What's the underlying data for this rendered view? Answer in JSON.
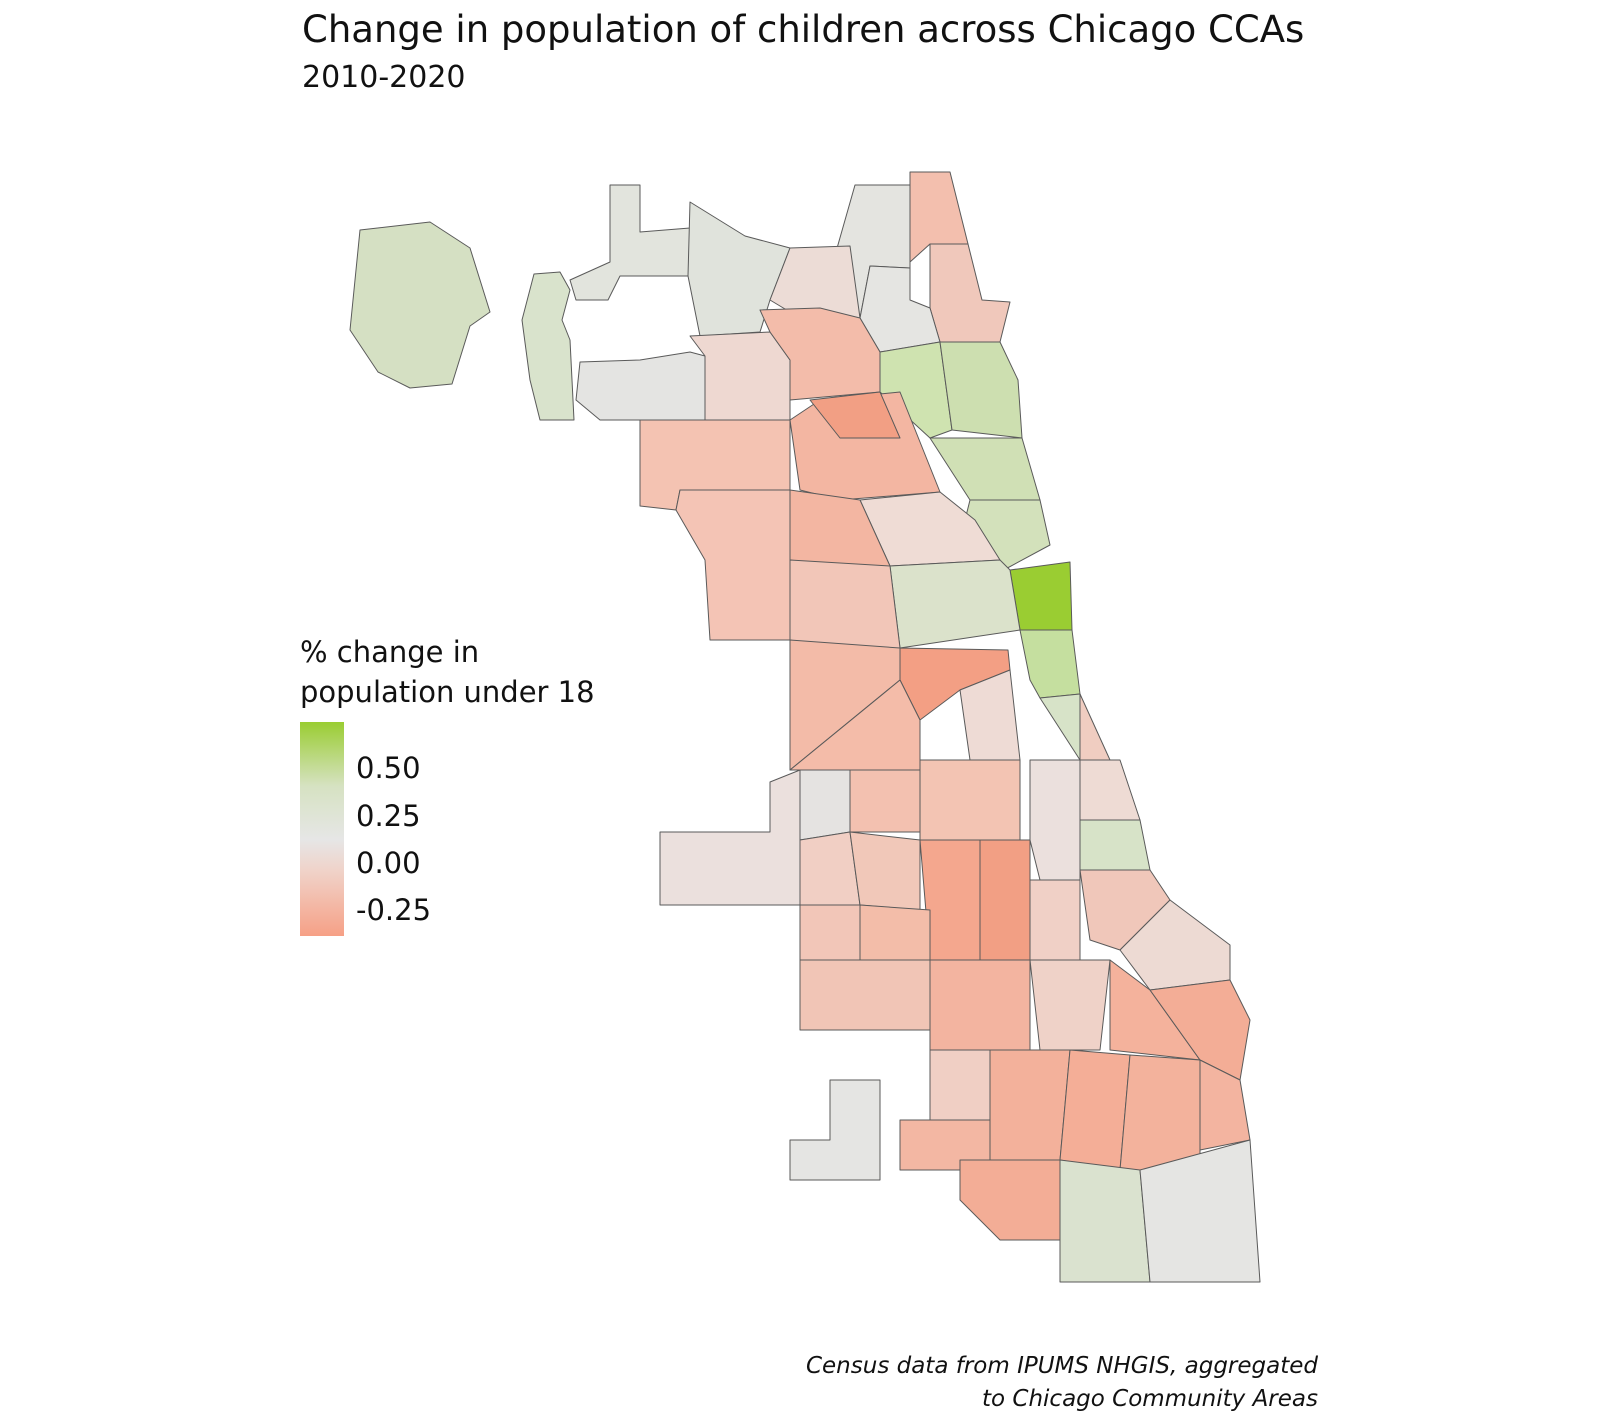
{
  "title": "Change in population of children across Chicago CCAs",
  "subtitle": "2010-2020",
  "legend": {
    "title_line1": "% change in",
    "title_line2": "population under 18",
    "ticks": [
      {
        "label": "0.50",
        "value": 0.5
      },
      {
        "label": "0.25",
        "value": 0.25
      },
      {
        "label": "0.00",
        "value": 0.0
      },
      {
        "label": "-0.25",
        "value": -0.25
      }
    ],
    "colors": {
      "high": "#9acd32",
      "mid": "#e6e6e6",
      "low": "#f6a086"
    }
  },
  "caption_line1": "Census data from IPUMS NHGIS, aggregated",
  "caption_line2": "to Chicago Community Areas"
}
